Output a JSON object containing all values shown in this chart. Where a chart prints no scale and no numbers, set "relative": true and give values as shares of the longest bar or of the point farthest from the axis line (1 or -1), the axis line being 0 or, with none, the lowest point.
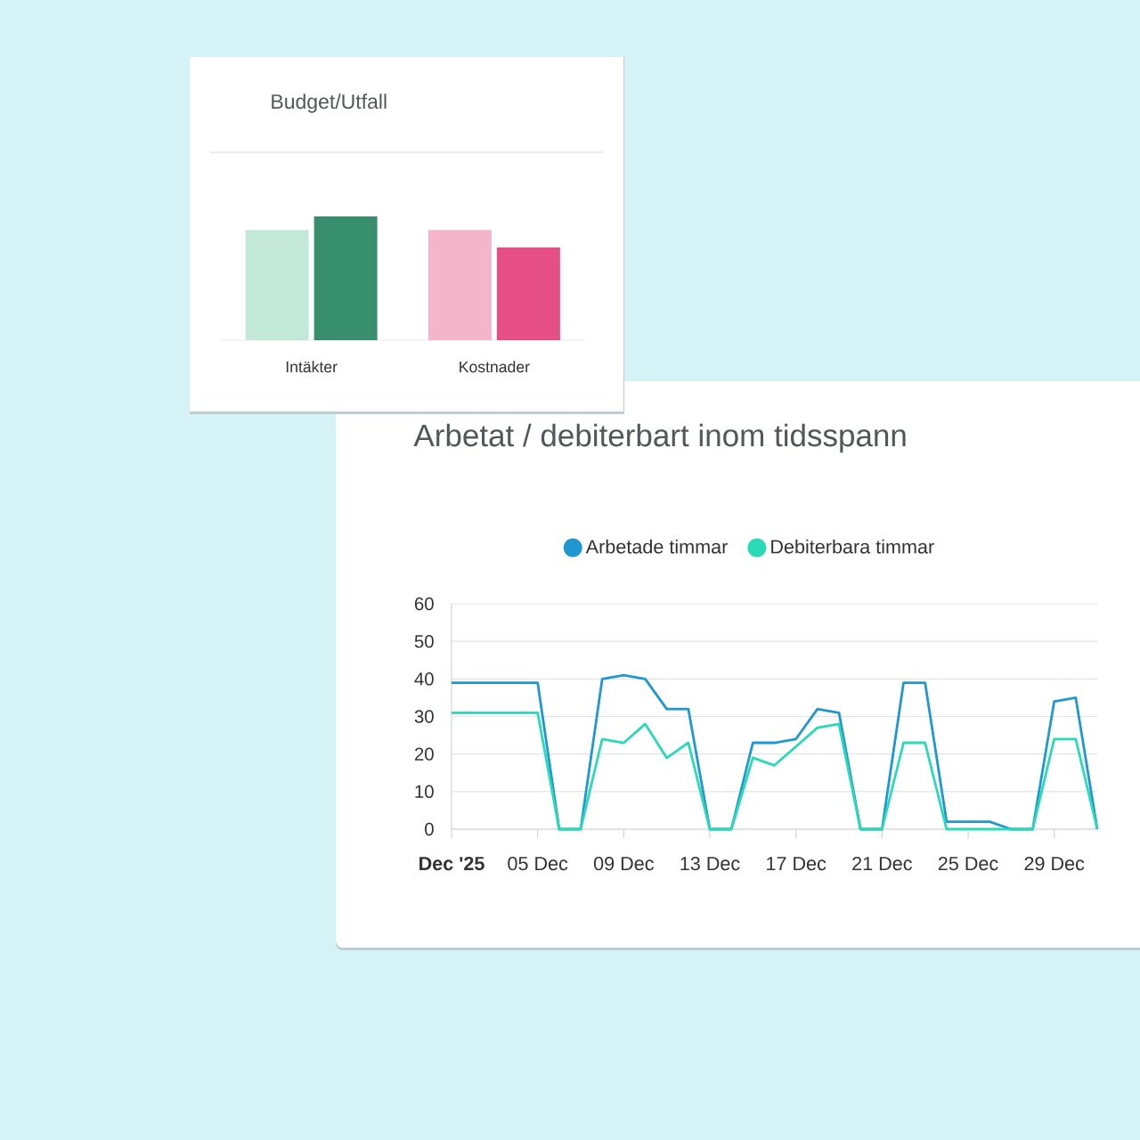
{
  "chart_data": [
    {
      "type": "bar",
      "title": "Budget/Utfall",
      "categories": [
        "Intäkter",
        "Kostnader"
      ],
      "relative": true,
      "series": [
        {
          "colors": [
            "#c2e8da",
            "#f4b5ca"
          ],
          "values": [
            0.89,
            0.89
          ]
        },
        {
          "colors": [
            "#378f6e",
            "#e64f86"
          ],
          "values": [
            1,
            0.75
          ]
        }
      ]
    },
    {
      "type": "line",
      "title": "Arbetat / debiterbart inom tidsspann",
      "x": [
        "2025-12-01",
        "2025-12-02",
        "2025-12-03",
        "2025-12-04",
        "2025-12-05",
        "2025-12-06",
        "2025-12-07",
        "2025-12-08",
        "2025-12-09",
        "2025-12-10",
        "2025-12-11",
        "2025-12-12",
        "2025-12-13",
        "2025-12-14",
        "2025-12-15",
        "2025-12-16",
        "2025-12-17",
        "2025-12-18",
        "2025-12-19",
        "2025-12-20",
        "2025-12-21",
        "2025-12-22",
        "2025-12-23",
        "2025-12-24",
        "2025-12-25",
        "2025-12-26",
        "2025-12-27",
        "2025-12-28",
        "2025-12-29",
        "2025-12-30",
        "2025-12-31"
      ],
      "series": [
        {
          "name": "Arbetade timmar",
          "color": "#1f98d2",
          "values": [
            39,
            39,
            39,
            39,
            39,
            0,
            0,
            40,
            41,
            40,
            32,
            32,
            0,
            0,
            23,
            23,
            24,
            32,
            31,
            0,
            0,
            39,
            39,
            2,
            2,
            2,
            0,
            0,
            34,
            35,
            0
          ]
        },
        {
          "name": "Debiterbara timmar",
          "color": "#2ad9b5",
          "values": [
            31,
            31,
            31,
            31,
            31,
            0,
            0,
            24,
            23,
            28,
            19,
            23,
            0,
            0,
            19,
            17,
            22,
            27,
            28,
            0,
            0,
            23,
            23,
            0,
            0,
            0,
            0,
            0,
            24,
            24,
            0
          ]
        }
      ],
      "xlim": [
        "2025-12-01",
        "2025-12-31"
      ],
      "xticks": [
        {
          "value": "2025-12-01",
          "label": "**Dec '25**"
        },
        {
          "value": "2025-12-05",
          "label": "05 Dec"
        },
        {
          "value": "2025-12-09",
          "label": "09 Dec"
        },
        {
          "value": "2025-12-13",
          "label": "13 Dec"
        },
        {
          "value": "2025-12-17",
          "label": "17 Dec"
        },
        {
          "value": "2025-12-21",
          "label": "21 Dec"
        },
        {
          "value": "2025-12-25",
          "label": "25 Dec"
        },
        {
          "value": "2025-12-29",
          "label": "29 Dec"
        }
      ],
      "ylim": [
        0,
        60
      ],
      "yticks": [
        0,
        10,
        20,
        30,
        40,
        50,
        60
      ],
      "grid": "y",
      "legend": "top"
    }
  ]
}
